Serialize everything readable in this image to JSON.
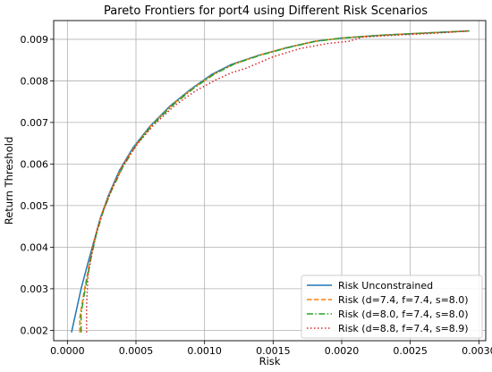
{
  "chart_data": {
    "type": "line",
    "title": "Pareto Frontiers for port4 using Different Risk Scenarios",
    "xlabel": "Risk",
    "ylabel": "Return Threshold",
    "xlim": [
      -0.0001,
      0.00305
    ],
    "ylim": [
      0.00175,
      0.00945
    ],
    "xticks": [
      0.0,
      0.0005,
      0.001,
      0.0015,
      0.002,
      0.0025,
      0.003
    ],
    "xtick_labels": [
      "0.0000",
      "0.0005",
      "0.0010",
      "0.0015",
      "0.0020",
      "0.0025",
      "0.0030"
    ],
    "yticks": [
      0.002,
      0.003,
      0.004,
      0.005,
      0.006,
      0.007,
      0.008,
      0.009
    ],
    "ytick_labels": [
      "0.002",
      "0.003",
      "0.004",
      "0.005",
      "0.006",
      "0.007",
      "0.008",
      "0.009"
    ],
    "grid": true,
    "legend_position": "lower-right",
    "series": [
      {
        "name": "Risk Unconstrained",
        "color": "#1f77b4",
        "style": "solid",
        "points": [
          [
            3e-05,
            0.00195
          ],
          [
            6e-05,
            0.0024
          ],
          [
            0.0001,
            0.003
          ],
          [
            0.00014,
            0.0035
          ],
          [
            0.00019,
            0.0041
          ],
          [
            0.00024,
            0.0047
          ],
          [
            0.0003,
            0.00525
          ],
          [
            0.00038,
            0.00585
          ],
          [
            0.00048,
            0.0064
          ],
          [
            0.0006,
            0.0069
          ],
          [
            0.00075,
            0.0074
          ],
          [
            0.0009,
            0.0078
          ],
          [
            0.00105,
            0.00815
          ],
          [
            0.0012,
            0.0084
          ],
          [
            0.0014,
            0.00862
          ],
          [
            0.0016,
            0.0088
          ],
          [
            0.0018,
            0.00895
          ],
          [
            0.002,
            0.00903
          ],
          [
            0.0023,
            0.0091
          ],
          [
            0.0026,
            0.00915
          ],
          [
            0.00293,
            0.0092
          ]
        ]
      },
      {
        "name": "Risk (d=7.4, f=7.4, s=8.0)",
        "color": "#ff7f0e",
        "style": "dashed",
        "points": [
          [
            9e-05,
            0.00195
          ],
          [
            9e-05,
            0.0023
          ],
          [
            0.00012,
            0.0029
          ],
          [
            0.00016,
            0.0036
          ],
          [
            0.0002,
            0.0042
          ],
          [
            0.00025,
            0.0048
          ],
          [
            0.00031,
            0.0053
          ],
          [
            0.00039,
            0.00588
          ],
          [
            0.00049,
            0.00642
          ],
          [
            0.00061,
            0.00692
          ],
          [
            0.00076,
            0.00741
          ],
          [
            0.00091,
            0.00781
          ],
          [
            0.00106,
            0.00815
          ],
          [
            0.00121,
            0.0084
          ],
          [
            0.0014,
            0.00862
          ],
          [
            0.0016,
            0.0088
          ],
          [
            0.0018,
            0.00895
          ],
          [
            0.002,
            0.00903
          ],
          [
            0.0023,
            0.0091
          ],
          [
            0.0026,
            0.00915
          ],
          [
            0.00293,
            0.0092
          ]
        ]
      },
      {
        "name": "Risk (d=8.0, f=7.4, s=8.0)",
        "color": "#2ca02c",
        "style": "dashdot",
        "points": [
          [
            0.0001,
            0.00195
          ],
          [
            0.0001,
            0.0024
          ],
          [
            0.00013,
            0.003
          ],
          [
            0.00017,
            0.0037
          ],
          [
            0.00021,
            0.0043
          ],
          [
            0.00026,
            0.00485
          ],
          [
            0.00032,
            0.00535
          ],
          [
            0.0004,
            0.0059
          ],
          [
            0.0005,
            0.00645
          ],
          [
            0.00062,
            0.00694
          ],
          [
            0.00077,
            0.00742
          ],
          [
            0.00092,
            0.00782
          ],
          [
            0.00107,
            0.00816
          ],
          [
            0.00122,
            0.00841
          ],
          [
            0.00141,
            0.00862
          ],
          [
            0.00161,
            0.0088
          ],
          [
            0.00181,
            0.00895
          ],
          [
            0.00201,
            0.00903
          ],
          [
            0.00231,
            0.0091
          ],
          [
            0.00261,
            0.00915
          ],
          [
            0.00293,
            0.0092
          ]
        ]
      },
      {
        "name": "Risk (d=8.8, f=7.4, s=8.9)",
        "color": "#d62728",
        "style": "dotted",
        "points": [
          [
            0.00014,
            0.00195
          ],
          [
            0.00014,
            0.0026
          ],
          [
            0.00015,
            0.0033
          ],
          [
            0.00018,
            0.0039
          ],
          [
            0.00022,
            0.00445
          ],
          [
            0.00027,
            0.00495
          ],
          [
            0.00033,
            0.00545
          ],
          [
            0.00041,
            0.00598
          ],
          [
            0.00051,
            0.00648
          ],
          [
            0.00063,
            0.00694
          ],
          [
            0.00078,
            0.0074
          ],
          [
            0.00093,
            0.00775
          ],
          [
            0.00108,
            0.00802
          ],
          [
            0.0012,
            0.0082
          ],
          [
            0.0013,
            0.0083
          ],
          [
            0.0015,
            0.00858
          ],
          [
            0.0017,
            0.00878
          ],
          [
            0.0019,
            0.0089
          ],
          [
            0.00205,
            0.00895
          ],
          [
            0.00215,
            0.00905
          ],
          [
            0.0024,
            0.0091
          ],
          [
            0.0027,
            0.00915
          ],
          [
            0.00293,
            0.0092
          ]
        ]
      }
    ]
  }
}
